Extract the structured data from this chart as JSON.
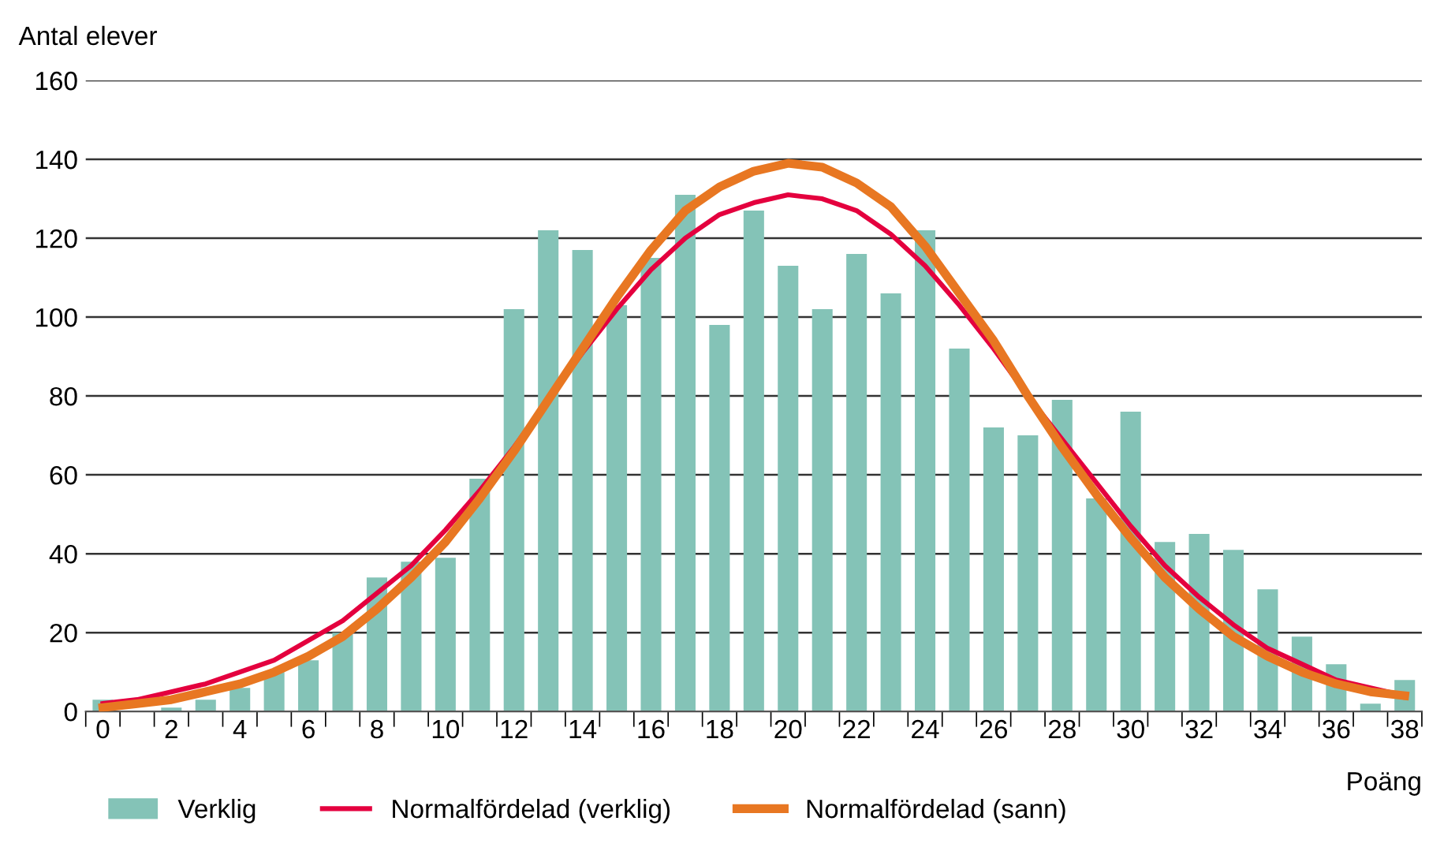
{
  "chart_data": {
    "type": "bar",
    "ylabel": "Antal elever",
    "xlabel": "Poäng",
    "categories": [
      "0",
      null,
      "2",
      null,
      "4",
      null,
      "6",
      null,
      "8",
      null,
      "10",
      null,
      "12",
      null,
      "14",
      null,
      "16",
      null,
      "18",
      null,
      "20",
      null,
      "22",
      null,
      "24",
      null,
      "26",
      null,
      "28",
      null,
      "30",
      null,
      "32",
      null,
      "34",
      null,
      "36",
      null,
      "38"
    ],
    "series": [
      {
        "name": "Verklig",
        "color": "#84c3b7",
        "values": [
          3,
          0,
          1,
          3,
          6,
          10,
          13,
          20,
          34,
          38,
          39,
          59,
          102,
          122,
          117,
          103,
          115,
          131,
          98,
          127,
          113,
          102,
          116,
          106,
          122,
          92,
          72,
          70,
          79,
          54,
          76,
          43,
          45,
          41,
          31,
          19,
          12,
          2,
          8
        ]
      },
      {
        "name": "Normalfördelad (verklig)",
        "type": "line",
        "color": "#e4003e",
        "values": [
          2,
          3,
          5,
          7,
          10,
          13,
          18,
          23,
          30,
          37,
          46,
          56,
          67,
          79,
          91,
          102,
          112,
          120,
          126,
          129,
          131,
          130,
          127,
          121,
          113,
          103,
          92,
          80,
          69,
          58,
          47,
          37,
          29,
          22,
          16,
          12,
          8,
          6,
          4
        ]
      },
      {
        "name": "Normalfördelad (sann)",
        "type": "line",
        "color": "#e87722",
        "values": [
          1,
          2,
          3,
          5,
          7,
          10,
          14,
          19,
          26,
          34,
          43,
          54,
          66,
          79,
          92,
          105,
          117,
          127,
          133,
          137,
          139,
          138,
          134,
          128,
          118,
          106,
          94,
          80,
          67,
          55,
          44,
          34,
          26,
          19,
          14,
          10,
          7,
          5,
          4
        ]
      }
    ],
    "ylim": [
      0,
      160
    ],
    "yticks": [
      0,
      20,
      40,
      60,
      80,
      100,
      120,
      140,
      160
    ],
    "grid": "y",
    "legend": "bottom",
    "marker": "none",
    "line_style": "solid"
  }
}
